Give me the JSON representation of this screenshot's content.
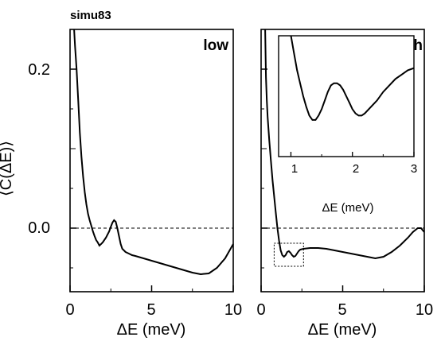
{
  "figure_label": "simu83",
  "ylabel": "⟨C(ΔE)⟩",
  "chart_data": [
    {
      "type": "line",
      "panel_label": "low",
      "xlabel": "ΔE (meV)",
      "xlim": [
        0,
        10
      ],
      "ylim": [
        -0.08,
        0.25
      ],
      "xticks": [
        0,
        5,
        10
      ],
      "xtick_labels": [
        "0",
        "5",
        "10"
      ],
      "yticks": [
        0.0,
        0.2
      ],
      "ytick_labels": [
        "0.0",
        "0.2"
      ],
      "reference_line": {
        "y": 0.0,
        "style": "dashed"
      },
      "series": [
        {
          "x": [
            0.25,
            0.3,
            0.4,
            0.5,
            0.6,
            0.7,
            0.8,
            0.9,
            1.0,
            1.1,
            1.2,
            1.3,
            1.4,
            1.5,
            1.6,
            1.7,
            1.8,
            2.0,
            2.2,
            2.4,
            2.5,
            2.6,
            2.7,
            2.8,
            2.9,
            3.0,
            3.1,
            3.2,
            3.4,
            3.6,
            3.8,
            4.0,
            4.5,
            5.0,
            5.5,
            6.0,
            6.5,
            7.0,
            7.5,
            8.0,
            8.5,
            9.0,
            9.5,
            10.0
          ],
          "y": [
            0.25,
            0.23,
            0.2,
            0.16,
            0.12,
            0.09,
            0.065,
            0.045,
            0.03,
            0.018,
            0.01,
            0.003,
            -0.004,
            -0.01,
            -0.015,
            -0.018,
            -0.022,
            -0.018,
            -0.012,
            -0.004,
            0.002,
            0.007,
            0.01,
            0.008,
            0.0,
            -0.01,
            -0.02,
            -0.026,
            -0.03,
            -0.032,
            -0.034,
            -0.035,
            -0.038,
            -0.041,
            -0.044,
            -0.047,
            -0.05,
            -0.053,
            -0.056,
            -0.058,
            -0.057,
            -0.05,
            -0.038,
            -0.02
          ]
        }
      ]
    },
    {
      "type": "line",
      "panel_label": "high",
      "xlabel": "ΔE (meV)",
      "xlim": [
        0,
        10
      ],
      "ylim": [
        -0.08,
        0.25
      ],
      "xticks": [
        0,
        5,
        10
      ],
      "xtick_labels": [
        "0",
        "5",
        "10"
      ],
      "yticks": [
        0.0,
        0.2
      ],
      "reference_line": {
        "y": 0.0,
        "style": "dashed"
      },
      "series": [
        {
          "x": [
            0.25,
            0.3,
            0.35,
            0.4,
            0.5,
            0.6,
            0.7,
            0.8,
            0.9,
            1.0,
            1.1,
            1.2,
            1.3,
            1.4,
            1.5,
            1.6,
            1.7,
            1.8,
            1.9,
            2.0,
            2.1,
            2.2,
            2.3,
            2.4,
            2.6,
            3.0,
            3.5,
            4.0,
            4.5,
            5.0,
            5.5,
            6.0,
            6.5,
            7.0,
            7.5,
            8.0,
            8.5,
            9.0,
            9.3,
            9.6,
            9.8,
            10.0
          ],
          "y": [
            0.25,
            0.19,
            0.16,
            0.14,
            0.11,
            0.085,
            0.06,
            0.04,
            0.02,
            0.0,
            -0.016,
            -0.028,
            -0.034,
            -0.036,
            -0.034,
            -0.03,
            -0.029,
            -0.031,
            -0.034,
            -0.036,
            -0.035,
            -0.032,
            -0.029,
            -0.027,
            -0.026,
            -0.025,
            -0.025,
            -0.026,
            -0.028,
            -0.03,
            -0.032,
            -0.034,
            -0.036,
            -0.038,
            -0.036,
            -0.03,
            -0.022,
            -0.012,
            -0.005,
            0.0,
            0.0,
            -0.005
          ]
        }
      ],
      "highlight_box": {
        "x": [
          0.8,
          2.6
        ],
        "y": [
          -0.048,
          -0.019
        ]
      },
      "inset": {
        "type": "line",
        "xlabel": "ΔE (meV)",
        "xlim": [
          0.8,
          3.0
        ],
        "xticks": [
          1,
          2,
          3
        ],
        "xtick_labels": [
          "1",
          "2",
          "3"
        ],
        "ylim": [
          -0.05,
          -0.022
        ],
        "series": [
          {
            "x": [
              1.0,
              1.05,
              1.1,
              1.15,
              1.2,
              1.25,
              1.3,
              1.35,
              1.4,
              1.45,
              1.5,
              1.55,
              1.6,
              1.65,
              1.7,
              1.75,
              1.8,
              1.85,
              1.9,
              1.95,
              2.0,
              2.05,
              2.1,
              2.15,
              2.2,
              2.3,
              2.4,
              2.5,
              2.6,
              2.7,
              2.8,
              2.9,
              3.0
            ],
            "y": [
              -0.022,
              -0.026,
              -0.03,
              -0.033,
              -0.036,
              -0.0385,
              -0.0405,
              -0.0415,
              -0.0415,
              -0.0405,
              -0.039,
              -0.037,
              -0.035,
              -0.0335,
              -0.033,
              -0.033,
              -0.0335,
              -0.0345,
              -0.036,
              -0.0375,
              -0.039,
              -0.04,
              -0.0405,
              -0.0405,
              -0.04,
              -0.0385,
              -0.037,
              -0.035,
              -0.0335,
              -0.032,
              -0.031,
              -0.03,
              -0.0295
            ]
          }
        ]
      }
    }
  ]
}
